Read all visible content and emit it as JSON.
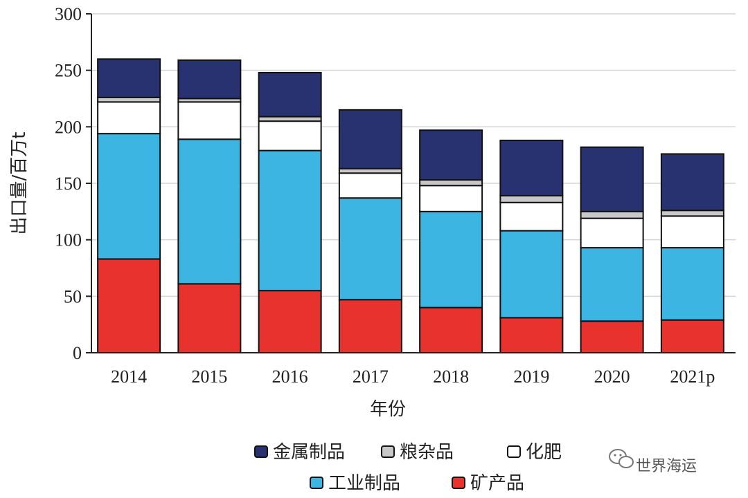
{
  "chart_data": {
    "type": "bar",
    "stacked": true,
    "title": "",
    "xlabel": "年份",
    "ylabel": "出口量/百万t",
    "ylim": [
      0,
      300
    ],
    "yticks": [
      0,
      50,
      100,
      150,
      200,
      250,
      300
    ],
    "categories": [
      "2014",
      "2015",
      "2016",
      "2017",
      "2018",
      "2019",
      "2020",
      "2021p"
    ],
    "grid": true,
    "legend_position": "bottom",
    "series": [
      {
        "name": "矿产品",
        "color": "#e8322d",
        "values": [
          83,
          61,
          55,
          47,
          40,
          31,
          28,
          29
        ]
      },
      {
        "name": "工业制品",
        "color": "#3db5e3",
        "values": [
          111,
          128,
          124,
          90,
          85,
          77,
          65,
          64
        ]
      },
      {
        "name": "化肥",
        "color": "#ffffff",
        "values": [
          28,
          33,
          26,
          22,
          23,
          25,
          26,
          28
        ]
      },
      {
        "name": "粮杂品",
        "color": "#c8c8c8",
        "values": [
          4,
          3,
          4,
          4,
          5,
          6,
          6,
          5
        ]
      },
      {
        "name": "金属制品",
        "color": "#283270",
        "values": [
          34,
          34,
          39,
          52,
          44,
          49,
          57,
          50
        ]
      }
    ],
    "legend_order": [
      "金属制品",
      "粮杂品",
      "化肥",
      "工业制品",
      "矿产品"
    ]
  },
  "watermark": {
    "text": "世界海运",
    "icon": "wechat-icon"
  }
}
